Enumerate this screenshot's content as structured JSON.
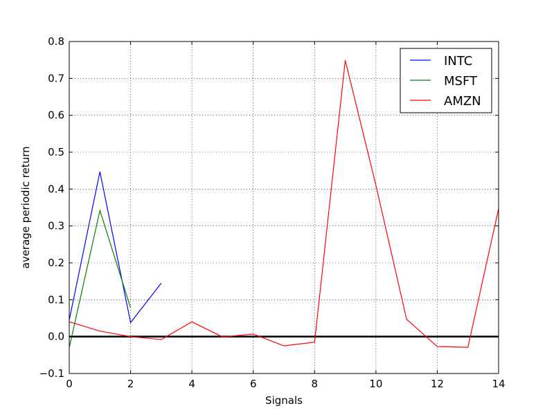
{
  "chart_data": {
    "type": "line",
    "title": "",
    "xlabel": "Signals",
    "ylabel": "average periodic return",
    "xlim": [
      0,
      14
    ],
    "ylim": [
      -0.1,
      0.8
    ],
    "xticks": [
      0,
      2,
      4,
      6,
      8,
      10,
      12,
      14
    ],
    "yticks": [
      -0.1,
      0.0,
      0.1,
      0.2,
      0.3,
      0.4,
      0.5,
      0.6,
      0.7,
      0.8
    ],
    "ytick_labels": [
      "−0.1",
      "0.0",
      "0.1",
      "0.2",
      "0.3",
      "0.4",
      "0.5",
      "0.6",
      "0.7",
      "0.8"
    ],
    "grid": true,
    "legend_position": "top-right",
    "reference_line": {
      "y": 0.0,
      "color": "#000000"
    },
    "series": [
      {
        "name": "INTC",
        "color": "#0000ff",
        "x": [
          0,
          1,
          2,
          3
        ],
        "values": [
          0.045,
          0.447,
          0.038,
          0.145
        ]
      },
      {
        "name": "MSFT",
        "color": "#008000",
        "x": [
          0,
          1,
          2
        ],
        "values": [
          -0.03,
          0.342,
          0.078
        ]
      },
      {
        "name": "AMZN",
        "color": "#ff0000",
        "x": [
          0,
          1,
          2,
          3,
          4,
          5,
          6,
          7,
          8,
          9,
          10,
          11,
          12,
          13,
          14
        ],
        "values": [
          0.04,
          0.015,
          0.0,
          -0.008,
          0.04,
          -0.001,
          0.007,
          -0.025,
          -0.015,
          0.749,
          0.41,
          0.047,
          -0.027,
          -0.029,
          0.347
        ]
      }
    ]
  }
}
